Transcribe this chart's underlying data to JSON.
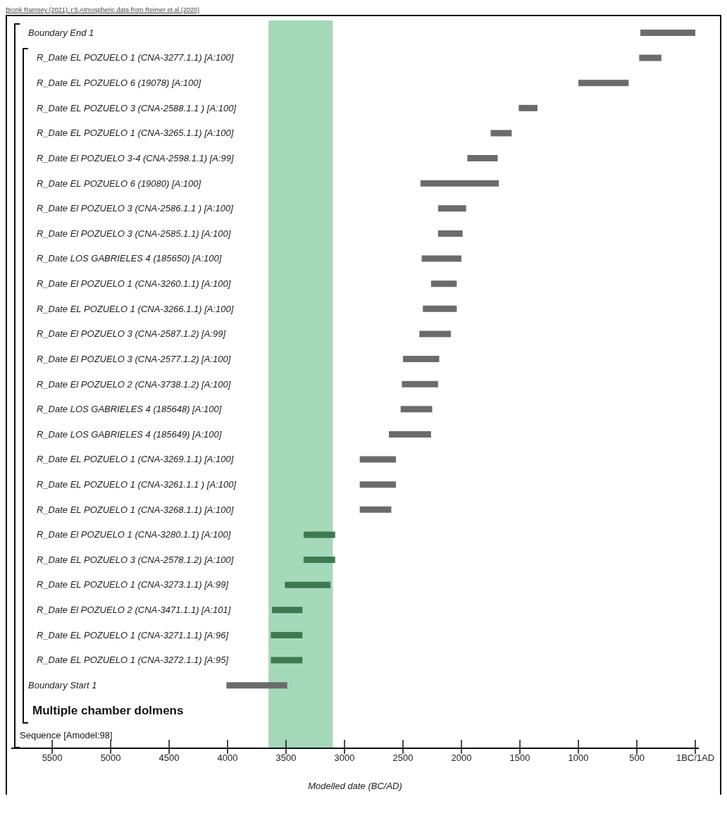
{
  "chart_data": {
    "type": "bar",
    "orientation": "horizontal",
    "xlabel": "Modelled date (BC/AD)",
    "categories": [
      "Boundary End 1",
      "R_Date EL POZUELO 1 (CNA-3277.1.1) [A:100]",
      "R_Date EL POZUELO 6 (19078) [A:100]",
      "R_Date EL POZUELO 3 (CNA-2588.1.1 ) [A:100]",
      "R_Date EL POZUELO 1 (CNA-3265.1.1) [A:100]",
      "R_Date El POZUELO 3-4 (CNA-2598.1.1) [A:99]",
      "R_Date EL POZUELO 6 (19080) [A:100]",
      "R_Date El POZUELO 3 (CNA-2586.1.1 ) [A:100]",
      "R_Date El POZUELO 3 (CNA-2585.1.1) [A:100]",
      "R_Date LOS GABRIELES 4 (185650) [A:100]",
      "R_Date El POZUELO 1 (CNA-3260.1.1) [A:100]",
      "R_Date EL POZUELO 1 (CNA-3266.1.1) [A:100]",
      "R_Date El POZUELO 3 (CNA-2587.1.2) [A:99]",
      "R_Date El POZUELO 3 (CNA-2577.1.2) [A:100]",
      "R_Date El POZUELO 2 (CNA-3738.1.2) [A:100]",
      "R_Date LOS GABRIELES 4 (185648) [A:100]",
      "R_Date LOS GABRIELES 4 (185649) [A:100]",
      "R_Date EL POZUELO 1 (CNA-3269.1.1) [A:100]",
      "R_Date EL POZUELO 1 (CNA-3261.1.1 ) [A:100]",
      "R_Date EL POZUELO 1 (CNA-3268.1.1) [A:100]",
      "R_Date El POZUELO 1 (CNA-3280.1.1) [A:100]",
      "R_Date EL POZUELO 3 (CNA-2578.1.2) [A:100]",
      "R_Date EL POZUELO 1 (CNA-3273.1.1) [A:99]",
      "R_Date El POZUELO 2 (CNA-3471.1.1) [A:101]",
      "R_Date EL POZUELO 1 (CNA-3271.1.1) [A:96]",
      "R_Date EL POZUELO 1 (CNA-3272.1.1) [A:95]",
      "Boundary Start 1"
    ],
    "base": [
      0,
      290,
      570,
      1350,
      1570,
      1690,
      1680,
      1960,
      1990,
      2000,
      2040,
      2040,
      2090,
      2190,
      2200,
      2250,
      2260,
      2560,
      2560,
      2600,
      3080,
      3080,
      3120,
      3360,
      3360,
      3360,
      3490
    ],
    "values": [
      470,
      190,
      430,
      160,
      180,
      260,
      670,
      240,
      210,
      340,
      220,
      290,
      270,
      310,
      310,
      270,
      360,
      310,
      310,
      270,
      270,
      270,
      390,
      260,
      270,
      270,
      520
    ],
    "colors": [
      "#6b6b6b",
      "#6b6b6b",
      "#6b6b6b",
      "#6b6b6b",
      "#6b6b6b",
      "#6b6b6b",
      "#6b6b6b",
      "#6b6b6b",
      "#6b6b6b",
      "#6b6b6b",
      "#6b6b6b",
      "#6b6b6b",
      "#6b6b6b",
      "#6b6b6b",
      "#6b6b6b",
      "#6b6b6b",
      "#6b6b6b",
      "#6b6b6b",
      "#6b6b6b",
      "#6b6b6b",
      "#3d7a50",
      "#3d7a50",
      "#3d7a50",
      "#3d7a50",
      "#3d7a50",
      "#3d7a50",
      "#6b6b6b"
    ],
    "xlim": [
      5850,
      -30
    ],
    "xticks": [
      5500,
      5000,
      4500,
      4000,
      3500,
      3000,
      2500,
      2000,
      1500,
      1000,
      500,
      {
        "value": 0,
        "label": "1BC/1AD"
      }
    ],
    "bands": [
      {
        "axis": "x",
        "from": 3650,
        "to": 3100,
        "color": "#a4d9b9"
      }
    ],
    "annotations": [
      "Multiple chamber dolmens",
      "Sequence [Amodel:98]",
      "Bronk Ramsey (2021); r:5 Atmospheric data from Reimer et al (2020)"
    ],
    "legend": false
  }
}
